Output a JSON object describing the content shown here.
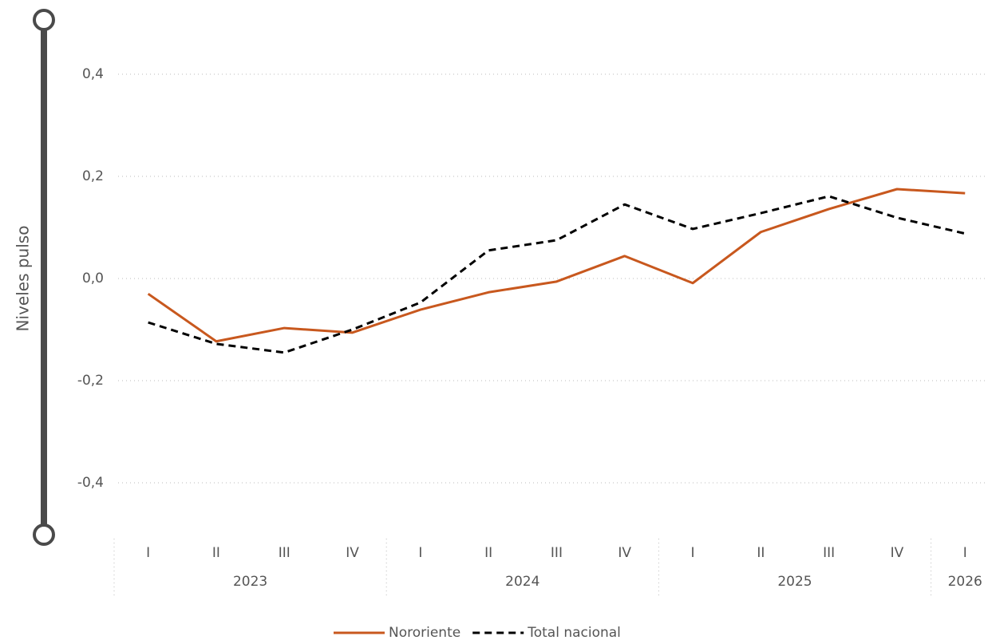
{
  "chart_data": {
    "type": "line",
    "y_label": "Niveles pulso",
    "categories": [
      "I",
      "II",
      "III",
      "IV",
      "I",
      "II",
      "III",
      "IV",
      "I",
      "II",
      "III",
      "IV",
      "I"
    ],
    "category_groups": [
      {
        "name": "2023",
        "span": 4
      },
      {
        "name": "2024",
        "span": 4
      },
      {
        "name": "2025",
        "span": 4
      },
      {
        "name": "2026",
        "span": 1
      }
    ],
    "series": [
      {
        "name": "Nororiente",
        "color": "#c8581e",
        "dash": false,
        "values": [
          -0.03,
          -0.123,
          -0.097,
          -0.106,
          -0.061,
          -0.027,
          -0.006,
          0.044,
          -0.009,
          0.091,
          0.136,
          0.175,
          0.167
        ]
      },
      {
        "name": "Total nacional",
        "color": "#000000",
        "dash": true,
        "values": [
          -0.086,
          -0.128,
          -0.145,
          -0.1,
          -0.047,
          0.055,
          0.075,
          0.145,
          0.097,
          0.128,
          0.161,
          0.119,
          0.088
        ]
      }
    ],
    "ylim": [
      -0.5,
      0.5
    ],
    "yticks": [
      {
        "value": -0.4,
        "label": "-0,4"
      },
      {
        "value": -0.2,
        "label": "-0,2"
      },
      {
        "value": 0,
        "label": "0,0"
      },
      {
        "value": 0.2,
        "label": "0,2"
      },
      {
        "value": 0.4,
        "label": "0,4"
      }
    ],
    "grid": true,
    "legend": "bottom"
  }
}
